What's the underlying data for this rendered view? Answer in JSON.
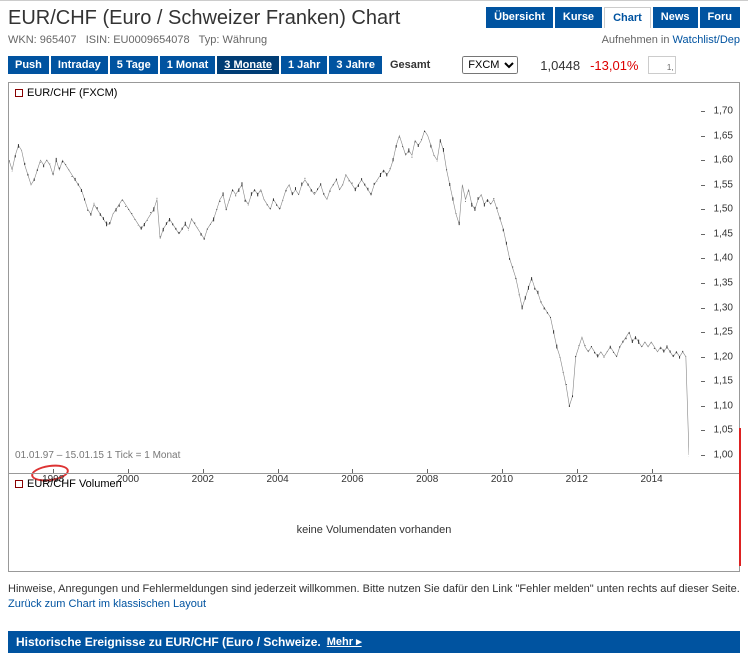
{
  "header": {
    "title": "EUR/CHF (Euro / Schweizer Franken) Chart",
    "wkn_label": "WKN:",
    "wkn": "965407",
    "isin_label": "ISIN:",
    "isin": "EU0009654078",
    "type_label": "Typ:",
    "type": "Währung",
    "watchlist_text": "Aufnehmen in",
    "watchlist_link": "Watchlist/Dep"
  },
  "nav_tabs": [
    "Übersicht",
    "Kurse",
    "Chart",
    "News",
    "Foru"
  ],
  "nav_active_index": 2,
  "time_buttons": [
    "Push",
    "Intraday",
    "5 Tage",
    "1 Monat",
    "3 Monate",
    "1 Jahr",
    "3 Jahre"
  ],
  "time_active_index": 4,
  "gesamt_label": "Gesamt",
  "source": {
    "options": [
      "FXCM"
    ],
    "selected": "FXCM"
  },
  "price": "1,0448",
  "change": "-13,01%",
  "spark_label": "1,",
  "chart": {
    "series_label": "EUR/CHF (FXCM)",
    "footer_text": "01.01.97 – 15.01.15    1 Tick = 1 Monat",
    "y_ticks": [
      "1,70",
      "1,65",
      "1,60",
      "1,55",
      "1,50",
      "1,45",
      "1,40",
      "1,35",
      "1,30",
      "1,25",
      "1,20",
      "1,15",
      "1,10",
      "1,05",
      "1,00"
    ],
    "y_min": 1.0,
    "y_max": 1.7,
    "x_ticks": [
      {
        "label": "1998",
        "pos": 0.065
      },
      {
        "label": "2000",
        "pos": 0.175
      },
      {
        "label": "2002",
        "pos": 0.285
      },
      {
        "label": "2004",
        "pos": 0.395
      },
      {
        "label": "2006",
        "pos": 0.505
      },
      {
        "label": "2008",
        "pos": 0.615
      },
      {
        "label": "2010",
        "pos": 0.725
      },
      {
        "label": "2012",
        "pos": 0.835
      },
      {
        "label": "2014",
        "pos": 0.945
      }
    ],
    "values": [
      1.6,
      1.58,
      1.61,
      1.63,
      1.62,
      1.59,
      1.57,
      1.55,
      1.56,
      1.58,
      1.6,
      1.59,
      1.6,
      1.59,
      1.57,
      1.6,
      1.58,
      1.6,
      1.59,
      1.58,
      1.57,
      1.56,
      1.55,
      1.54,
      1.52,
      1.5,
      1.49,
      1.51,
      1.5,
      1.49,
      1.48,
      1.47,
      1.47,
      1.49,
      1.5,
      1.51,
      1.52,
      1.51,
      1.5,
      1.49,
      1.48,
      1.47,
      1.46,
      1.47,
      1.48,
      1.49,
      1.5,
      1.52,
      1.44,
      1.46,
      1.47,
      1.48,
      1.47,
      1.46,
      1.45,
      1.46,
      1.47,
      1.46,
      1.48,
      1.47,
      1.46,
      1.45,
      1.44,
      1.46,
      1.47,
      1.48,
      1.5,
      1.52,
      1.53,
      1.5,
      1.52,
      1.54,
      1.53,
      1.54,
      1.55,
      1.52,
      1.51,
      1.53,
      1.54,
      1.53,
      1.54,
      1.52,
      1.51,
      1.5,
      1.52,
      1.51,
      1.5,
      1.52,
      1.54,
      1.55,
      1.53,
      1.54,
      1.53,
      1.55,
      1.56,
      1.55,
      1.54,
      1.53,
      1.54,
      1.55,
      1.53,
      1.52,
      1.54,
      1.55,
      1.56,
      1.54,
      1.55,
      1.57,
      1.56,
      1.55,
      1.54,
      1.55,
      1.56,
      1.55,
      1.54,
      1.53,
      1.55,
      1.56,
      1.57,
      1.58,
      1.57,
      1.58,
      1.6,
      1.63,
      1.65,
      1.63,
      1.61,
      1.62,
      1.61,
      1.64,
      1.63,
      1.64,
      1.66,
      1.65,
      1.63,
      1.61,
      1.6,
      1.64,
      1.62,
      1.58,
      1.55,
      1.52,
      1.49,
      1.47,
      1.55,
      1.52,
      1.54,
      1.51,
      1.5,
      1.52,
      1.53,
      1.51,
      1.52,
      1.51,
      1.52,
      1.5,
      1.48,
      1.46,
      1.43,
      1.4,
      1.38,
      1.36,
      1.33,
      1.3,
      1.32,
      1.34,
      1.36,
      1.34,
      1.33,
      1.31,
      1.3,
      1.29,
      1.28,
      1.25,
      1.22,
      1.2,
      1.17,
      1.14,
      1.1,
      1.12,
      1.2,
      1.22,
      1.24,
      1.22,
      1.21,
      1.22,
      1.21,
      1.2,
      1.21,
      1.2,
      1.21,
      1.22,
      1.21,
      1.2,
      1.22,
      1.23,
      1.24,
      1.25,
      1.23,
      1.24,
      1.23,
      1.22,
      1.23,
      1.22,
      1.23,
      1.22,
      1.21,
      1.22,
      1.21,
      1.22,
      1.21,
      1.2,
      1.21,
      1.2,
      1.21,
      1.2,
      1.0
    ],
    "line_color": "#333333",
    "background_color": "#ffffff",
    "circle_annot_color": "#dd3333",
    "drop_line_color": "#dd2222"
  },
  "volume": {
    "label": "EUR/CHF Volumen",
    "empty_text": "keine Volumendaten vorhanden"
  },
  "hints": {
    "text1": "Hinweise, Anregungen und Fehlermeldungen sind jederzeit willkommen. Bitte nutzen Sie dafür den Link \"Fehler melden\" unten rechts auf dieser Seite.",
    "link": "Zurück zum Chart im klassischen Layout"
  },
  "bottom_bar": {
    "text": "Historische Ereignisse zu EUR/CHF (Euro / Schweize.",
    "more": "Mehr ▸"
  }
}
